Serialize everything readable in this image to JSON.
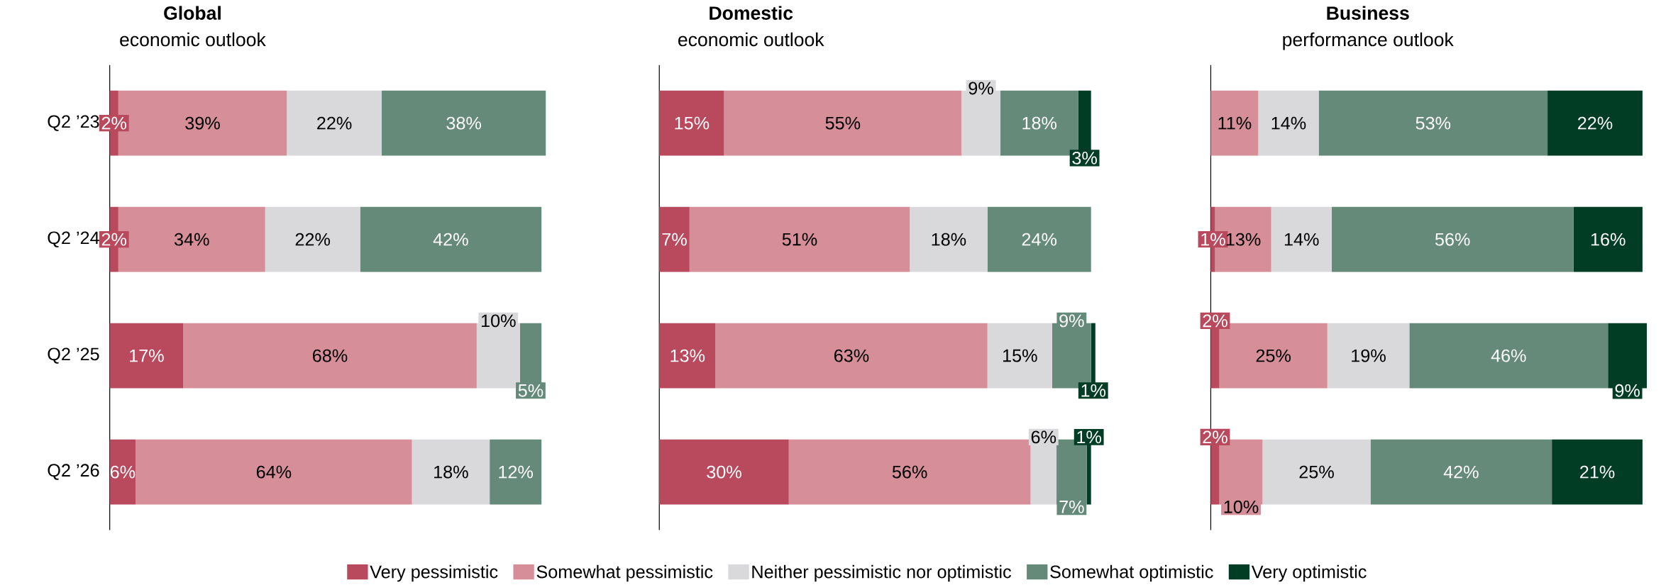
{
  "chart_data": [
    {
      "type": "bar",
      "orientation": "horizontal",
      "stacked": true,
      "title": "Global",
      "subtitle": "economic outlook",
      "tick_labels": "y",
      "legend": "bottom",
      "categories": [
        "Q2 ’23",
        "Q2 ’24",
        "Q2 ’25",
        "Q2 ’26"
      ],
      "series": [
        {
          "name": "Very pessimistic",
          "color": "#b94a5e",
          "values": [
            2,
            2,
            17,
            6
          ],
          "value_labels": [
            "2%",
            "2%",
            "17%",
            "6%"
          ]
        },
        {
          "name": "Somewhat pessimistic",
          "color": "#d68e98",
          "values": [
            39,
            34,
            68,
            64
          ],
          "value_labels": [
            "39%",
            "34%",
            "68%",
            "64%"
          ]
        },
        {
          "name": "Neither pessimistic nor optimistic",
          "color": "#d9d9db",
          "values": [
            22,
            22,
            10,
            18
          ],
          "value_labels": [
            "22%",
            "22%",
            "10%",
            "18%"
          ]
        },
        {
          "name": "Somewhat optimistic",
          "color": "#668a79",
          "values": [
            38,
            42,
            5,
            12
          ],
          "value_labels": [
            "38%",
            "42%",
            "5%",
            "12%"
          ]
        },
        {
          "name": "Very optimistic",
          "color": "#003d24",
          "values": [
            0,
            0,
            0,
            0
          ],
          "value_labels": [
            null,
            null,
            null,
            null
          ]
        }
      ]
    },
    {
      "type": "bar",
      "orientation": "horizontal",
      "stacked": true,
      "title": "Domestic",
      "subtitle": "economic outlook",
      "tick_labels": false,
      "categories": [
        null,
        null,
        null,
        null
      ],
      "series": [
        {
          "color": "#b94a5e",
          "values": [
            15,
            7,
            13,
            30
          ],
          "value_labels": [
            "15%",
            "7%",
            "13%",
            "30%"
          ]
        },
        {
          "color": "#d68e98",
          "values": [
            55,
            51,
            63,
            56
          ],
          "value_labels": [
            "55%",
            "51%",
            "63%",
            "56%"
          ]
        },
        {
          "color": "#d9d9db",
          "values": [
            9,
            18,
            15,
            6
          ],
          "value_labels": [
            "9%",
            "18%",
            "15%",
            "6%"
          ]
        },
        {
          "color": "#668a79",
          "values": [
            18,
            24,
            9,
            7
          ],
          "value_labels": [
            "18%",
            "24%",
            "9%",
            "7%"
          ]
        },
        {
          "color": "#003d24",
          "values": [
            3,
            0,
            1,
            1
          ],
          "value_labels": [
            "3%",
            null,
            "1%",
            "1%"
          ]
        }
      ]
    },
    {
      "type": "bar",
      "orientation": "horizontal",
      "stacked": true,
      "title": "Business",
      "subtitle": "performance outlook",
      "tick_labels": false,
      "categories": [
        null,
        null,
        null,
        null
      ],
      "series": [
        {
          "color": "#b94a5e",
          "values": [
            0,
            1,
            2,
            2
          ],
          "value_labels": [
            null,
            "1%",
            "2%",
            "2%"
          ]
        },
        {
          "color": "#d68e98",
          "values": [
            11,
            13,
            25,
            10
          ],
          "value_labels": [
            "11%",
            "13%",
            "25%",
            "10%"
          ]
        },
        {
          "color": "#d9d9db",
          "values": [
            14,
            14,
            19,
            25
          ],
          "value_labels": [
            "14%",
            "14%",
            "19%",
            "25%"
          ]
        },
        {
          "color": "#668a79",
          "values": [
            53,
            56,
            46,
            42
          ],
          "value_labels": [
            "53%",
            "56%",
            "46%",
            "42%"
          ]
        },
        {
          "color": "#003d24",
          "values": [
            22,
            16,
            9,
            21
          ],
          "value_labels": [
            "22%",
            "16%",
            "9%",
            "21%"
          ]
        }
      ]
    }
  ]
}
